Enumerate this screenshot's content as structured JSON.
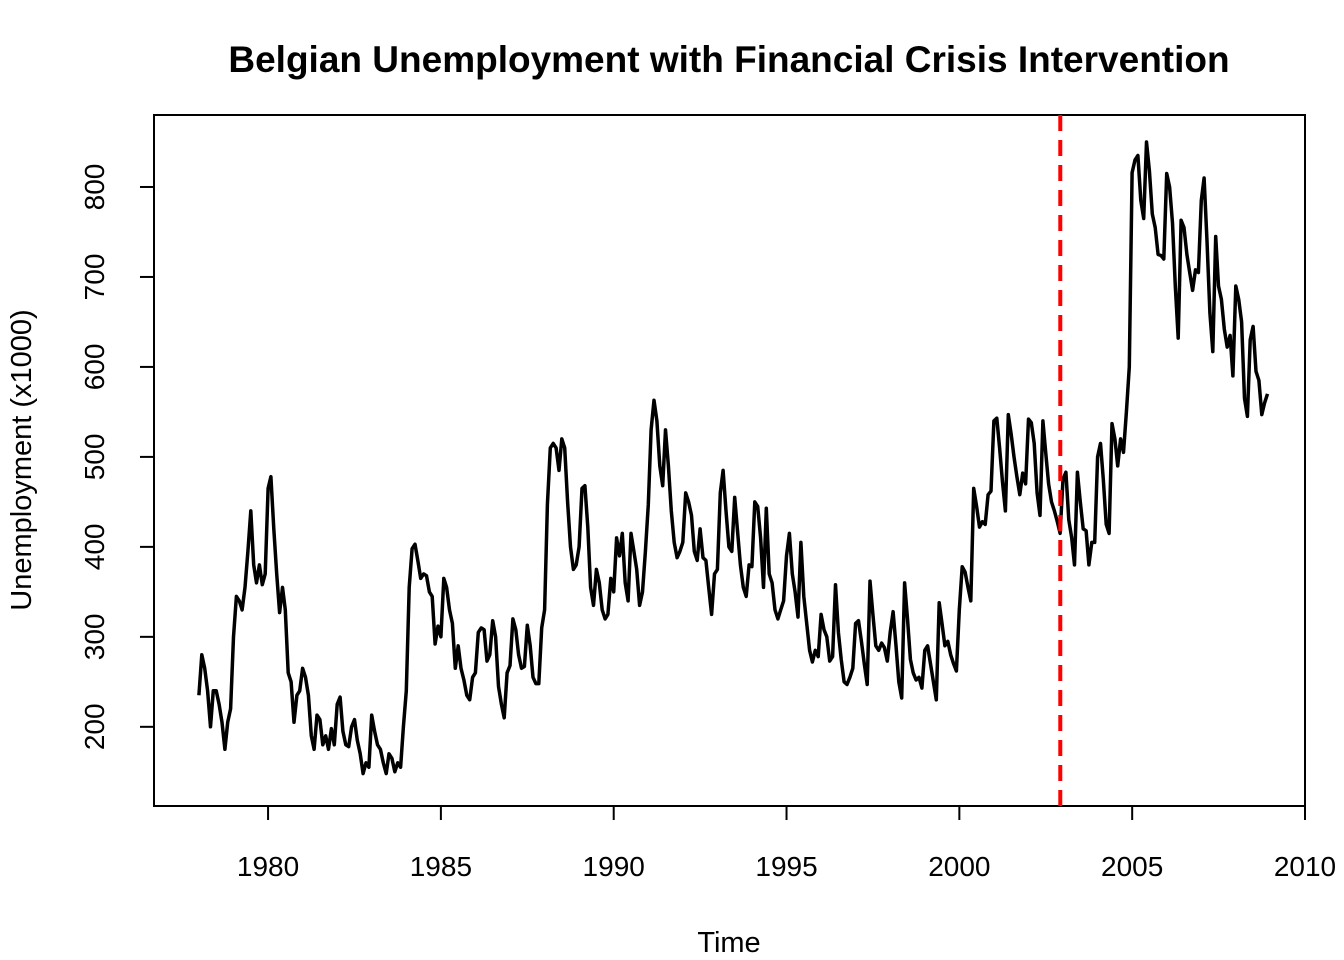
{
  "chart_data": {
    "type": "line",
    "title": "Belgian Unemployment with Financial Crisis Intervention",
    "xlabel": "Time",
    "ylabel": "Unemployment (x1000)",
    "xlim": [
      1976.7,
      2010.0
    ],
    "ylim": [
      112,
      880
    ],
    "x_ticks": [
      1980,
      1985,
      1990,
      1995,
      2000,
      2005,
      2010
    ],
    "y_ticks": [
      200,
      300,
      400,
      500,
      600,
      700,
      800
    ],
    "grid": false,
    "legend": "none",
    "line_color": "#000000",
    "intervention": {
      "x": 2002.92,
      "color": "#ff0000",
      "style": "dashed"
    },
    "series": [
      {
        "x_start": 1978.0,
        "x_step": 0.08333,
        "values": [
          235,
          280,
          265,
          240,
          200,
          240,
          240,
          225,
          205,
          175,
          205,
          220,
          300,
          345,
          340,
          330,
          355,
          395,
          440,
          380,
          360,
          380,
          358,
          370,
          465,
          478,
          420,
          370,
          327,
          355,
          330,
          260,
          250,
          205,
          235,
          240,
          265,
          255,
          235,
          190,
          175,
          213,
          208,
          180,
          190,
          175,
          198,
          180,
          225,
          233,
          195,
          180,
          178,
          200,
          208,
          185,
          170,
          148,
          160,
          155,
          213,
          195,
          180,
          175,
          160,
          148,
          170,
          165,
          150,
          160,
          155,
          200,
          240,
          355,
          398,
          403,
          385,
          365,
          370,
          368,
          350,
          345,
          292,
          312,
          300,
          365,
          355,
          330,
          315,
          265,
          290,
          265,
          252,
          235,
          230,
          255,
          260,
          305,
          310,
          308,
          273,
          280,
          318,
          300,
          245,
          225,
          210,
          260,
          268,
          320,
          308,
          280,
          265,
          267,
          313,
          290,
          255,
          248,
          248,
          310,
          330,
          447,
          510,
          515,
          510,
          485,
          520,
          510,
          450,
          400,
          375,
          380,
          400,
          465,
          468,
          422,
          355,
          335,
          375,
          360,
          330,
          320,
          325,
          365,
          350,
          410,
          390,
          415,
          360,
          340,
          415,
          395,
          375,
          335,
          350,
          395,
          447,
          530,
          563,
          540,
          490,
          468,
          530,
          490,
          440,
          405,
          388,
          395,
          405,
          460,
          450,
          435,
          395,
          385,
          420,
          388,
          385,
          355,
          325,
          370,
          375,
          460,
          485,
          440,
          400,
          395,
          455,
          418,
          380,
          355,
          345,
          380,
          378,
          450,
          445,
          410,
          355,
          443,
          370,
          360,
          330,
          320,
          330,
          340,
          390,
          415,
          370,
          350,
          322,
          405,
          345,
          315,
          285,
          272,
          285,
          278,
          325,
          308,
          300,
          273,
          278,
          358,
          305,
          275,
          250,
          247,
          255,
          265,
          315,
          318,
          295,
          270,
          247,
          362,
          325,
          290,
          285,
          293,
          288,
          273,
          305,
          328,
          290,
          250,
          232,
          360,
          320,
          275,
          260,
          252,
          255,
          243,
          285,
          290,
          270,
          250,
          230,
          338,
          315,
          290,
          295,
          280,
          270,
          262,
          330,
          378,
          372,
          355,
          340,
          465,
          445,
          422,
          428,
          425,
          458,
          462,
          540,
          543,
          510,
          472,
          440,
          547,
          525,
          500,
          478,
          458,
          482,
          470,
          542,
          538,
          515,
          460,
          435,
          540,
          505,
          470,
          450,
          440,
          428,
          415,
          475,
          483,
          430,
          410,
          380,
          483,
          450,
          420,
          418,
          380,
          405,
          405,
          500,
          515,
          475,
          425,
          415,
          537,
          520,
          490,
          520,
          505,
          550,
          600,
          816,
          830,
          835,
          785,
          765,
          850,
          818,
          770,
          755,
          725,
          724,
          720,
          815,
          800,
          760,
          690,
          632,
          763,
          755,
          725,
          705,
          685,
          708,
          705,
          785,
          810,
          740,
          660,
          617,
          745,
          690,
          675,
          642,
          622,
          635,
          590,
          690,
          675,
          650,
          565,
          545,
          630,
          645,
          595,
          585,
          547,
          560,
          570
        ]
      }
    ]
  }
}
